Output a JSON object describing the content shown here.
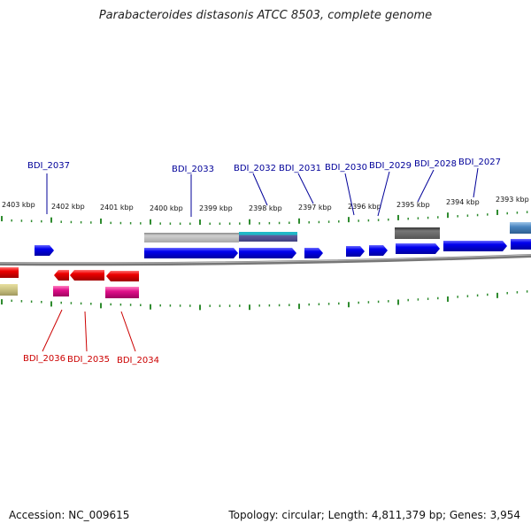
{
  "title": "Parabacteroides distasonis ATCC 8503, complete genome",
  "footer": {
    "accession": "Accession: NC_009615",
    "summary": "Topology: circular; Length: 4,811,379 bp; Genes: 3,954"
  },
  "colors": {
    "forward_gene": "#0000ee",
    "reverse_gene": "#ee0000",
    "reverse_rna": "#e0108a",
    "tick": "#2e8b2e",
    "backbone": "#888888",
    "top_label": "#000099",
    "bottom_label": "#cc0000"
  },
  "kbp_labels": [
    "2403 kbp",
    "2402 kbp",
    "2401 kbp",
    "2400 kbp",
    "2399 kbp",
    "2398 kbp",
    "2397 kbp",
    "2396 kbp",
    "2395 kbp",
    "2394 kbp",
    "2393 kbp"
  ],
  "genes_top": [
    "BDI_2037",
    "BDI_2033",
    "BDI_2032",
    "BDI_2031",
    "BDI_2030",
    "BDI_2029",
    "BDI_2028",
    "BDI_2027"
  ],
  "genes_bottom": [
    "BDI_2036",
    "BDI_2035",
    "BDI_2034"
  ]
}
